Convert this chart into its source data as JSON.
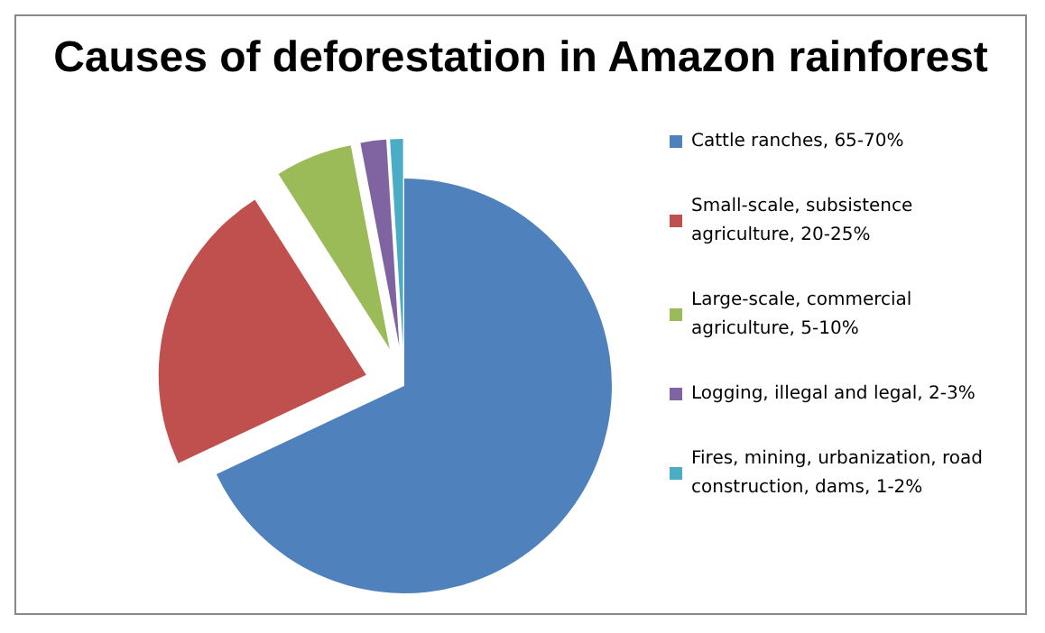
{
  "chart_data": {
    "type": "pie",
    "title": "Causes of deforestation in Amazon rainforest",
    "categories": [
      "Cattle ranches, 65-70%",
      "Small-scale, subsistence agriculture, 20-25%",
      "Large-scale, commercial agriculture, 5-10%",
      "Logging, illegal and legal, 2-3%",
      "Fires, mining, urbanization, road construction, dams, 1-2%"
    ],
    "values": [
      68,
      23,
      6,
      2,
      1
    ],
    "colors": [
      "#4f81bd",
      "#c0504d",
      "#9bbb59",
      "#8064a2",
      "#4bacc6"
    ],
    "legend": "right"
  }
}
